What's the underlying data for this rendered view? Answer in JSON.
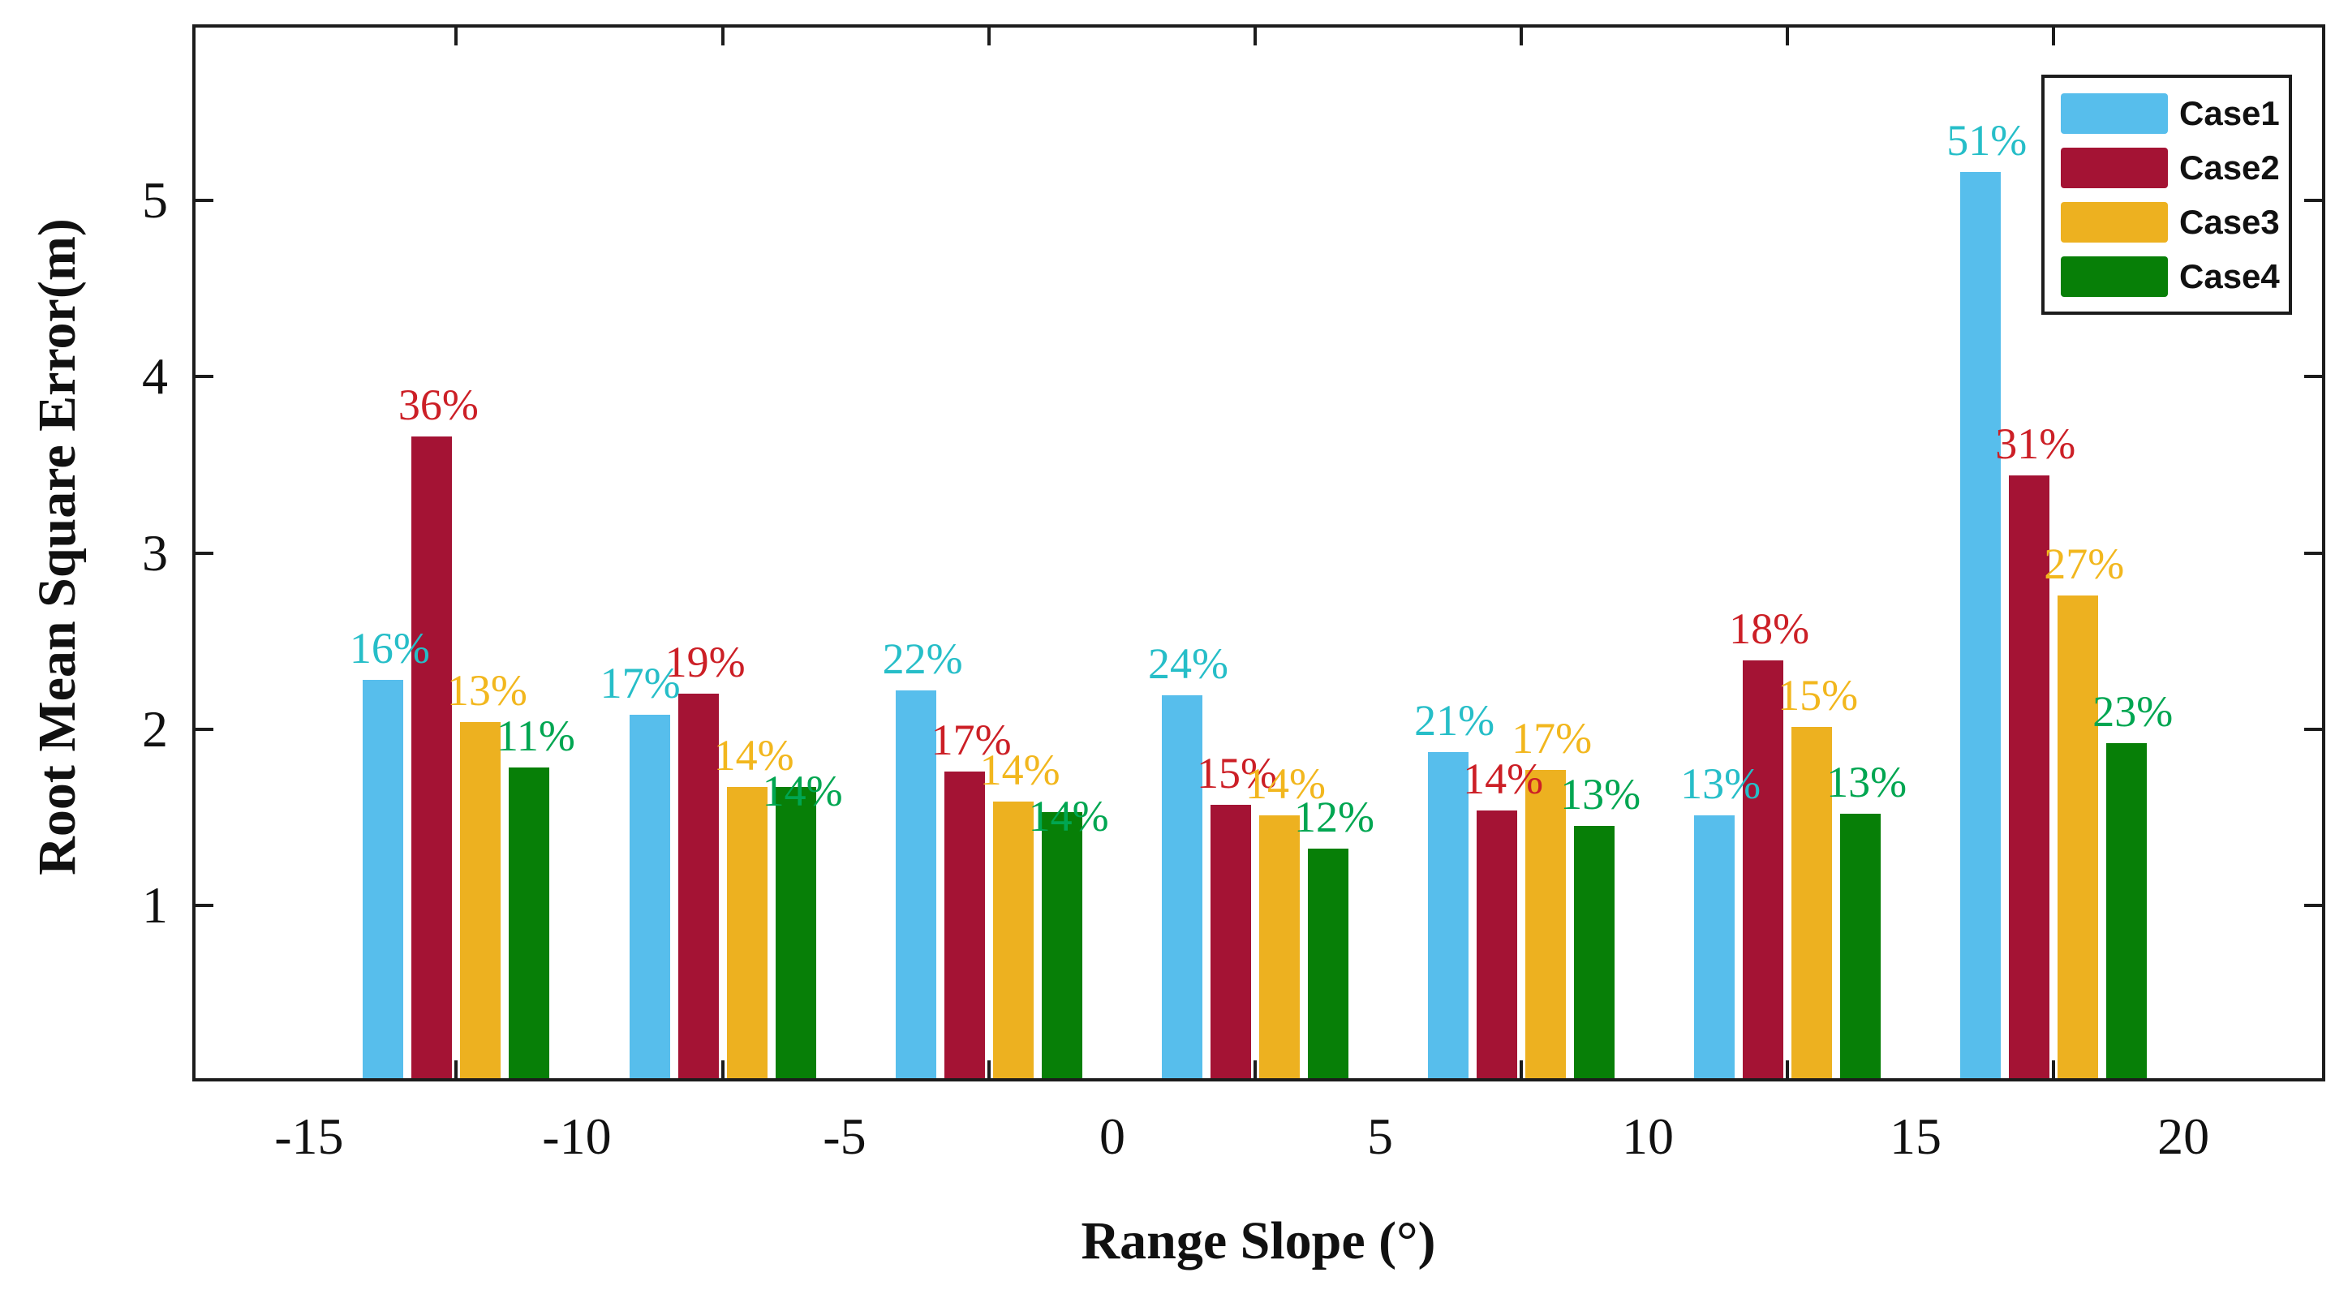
{
  "chart_data": {
    "type": "bar",
    "title": "",
    "xlabel": "Range Slope (°)",
    "ylabel": "Root Mean Square Error(m)",
    "xlim": [
      -17.18,
      22.65
    ],
    "ylim": [
      0,
      6
    ],
    "grid": false,
    "legend_position": "top-right",
    "y_ticks": [
      1,
      2,
      3,
      4,
      5
    ],
    "x_tick_values": [
      -15,
      -10,
      -5,
      0,
      5,
      10,
      15,
      20
    ],
    "x_tick_labels": [
      "-15",
      "-10",
      "-5",
      "0",
      "5",
      "10",
      "15",
      "20"
    ],
    "group_centers": [
      -12.25,
      -7.27,
      -2.3,
      2.66,
      7.63,
      12.6,
      17.57
    ],
    "bar_spacing_deg": 0.909,
    "bar_width_deg": 0.758,
    "axis_color": "#1c1c1c",
    "series": [
      {
        "name": "Case1",
        "color": "#57BEEC",
        "label_color": "#26BEC8",
        "values": [
          2.28,
          2.08,
          2.22,
          2.19,
          1.87,
          1.51,
          5.16
        ],
        "pct_labels": [
          "16%",
          "17%",
          "22%",
          "24%",
          "21%",
          "13%",
          "51%"
        ]
      },
      {
        "name": "Case2",
        "color": "#A41334",
        "label_color": "#CC1F26",
        "values": [
          3.66,
          2.2,
          1.76,
          1.57,
          1.54,
          2.39,
          3.44
        ],
        "pct_labels": [
          "36%",
          "19%",
          "17%",
          "15%",
          "14%",
          "18%",
          "31%"
        ]
      },
      {
        "name": "Case3",
        "color": "#EDB120",
        "label_color": "#F2B71E",
        "values": [
          2.04,
          1.67,
          1.59,
          1.51,
          1.77,
          2.01,
          2.76
        ],
        "pct_labels": [
          "13%",
          "14%",
          "14%",
          "14%",
          "17%",
          "15%",
          "27%"
        ]
      },
      {
        "name": "Case4",
        "color": "#077F07",
        "label_color": "#00A651",
        "values": [
          1.78,
          1.67,
          1.53,
          1.32,
          1.45,
          1.52,
          1.92
        ],
        "pct_labels": [
          "11%",
          "14%",
          "14%",
          "12%",
          "13%",
          "13%",
          "23%"
        ]
      }
    ],
    "label_nudges": {
      "1,0": [
        -20,
        0
      ],
      "1,3": [
        0,
        44
      ],
      "2,3": [
        0,
        44
      ]
    }
  }
}
